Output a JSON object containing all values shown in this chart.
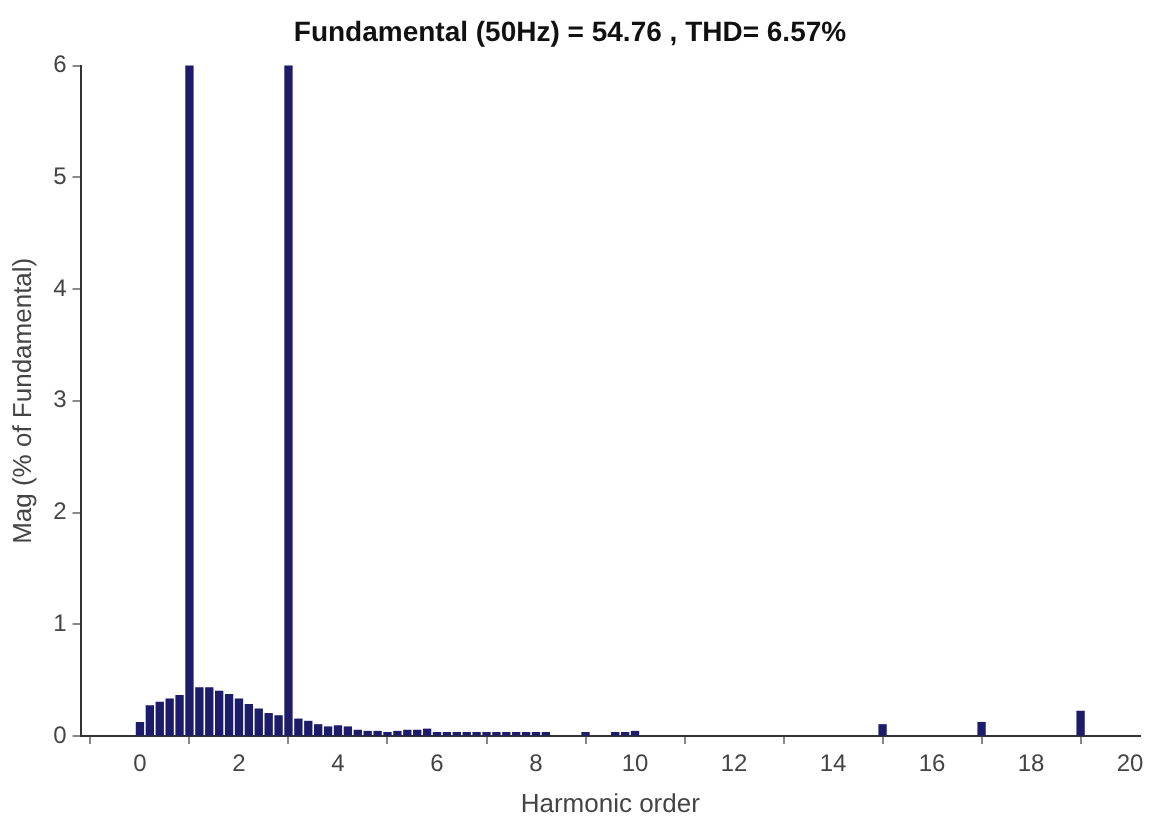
{
  "chart_data": {
    "type": "bar",
    "title": "Fundamental (50Hz) = 54.76 , THD= 6.57%",
    "xlabel": "Harmonic order",
    "ylabel": "Mag (% of Fundamental)",
    "x": [
      0,
      0.2,
      0.4,
      0.6,
      0.8,
      1,
      1.2,
      1.4,
      1.6,
      1.8,
      2,
      2.2,
      2.4,
      2.6,
      2.8,
      3,
      3.2,
      3.4,
      3.6,
      3.8,
      4,
      4.2,
      4.4,
      4.6,
      4.8,
      5,
      5.2,
      5.4,
      5.6,
      5.8,
      6,
      6.2,
      6.4,
      6.6,
      6.8,
      7,
      7.2,
      7.4,
      7.6,
      7.8,
      8,
      8.2,
      8.4,
      8.6,
      8.8,
      9,
      9.2,
      9.4,
      9.6,
      9.8,
      10,
      15,
      17,
      19
    ],
    "values": [
      0.12,
      0.27,
      0.3,
      0.33,
      0.36,
      6,
      0.43,
      0.43,
      0.4,
      0.37,
      0.33,
      0.28,
      0.24,
      0.2,
      0.18,
      6,
      0.15,
      0.13,
      0.1,
      0.08,
      0.09,
      0.08,
      0.05,
      0.04,
      0.04,
      0.03,
      0.04,
      0.05,
      0.05,
      0.06,
      0.03,
      0.03,
      0.03,
      0.03,
      0.03,
      0.03,
      0.03,
      0.03,
      0.03,
      0.03,
      0.03,
      0.03,
      null,
      null,
      null,
      0.03,
      null,
      null,
      0.03,
      0.03,
      0.04,
      0.1,
      0.12,
      0.22
    ],
    "color": "#1c1c6b",
    "xlim": [
      -1.2,
      20.2
    ],
    "xticks": [
      0,
      2,
      4,
      6,
      8,
      10,
      12,
      14,
      16,
      18,
      20
    ],
    "ylim": [
      0,
      6
    ],
    "yticks": [
      0,
      1,
      2,
      3,
      4,
      5,
      6
    ],
    "grid": false,
    "legend": false
  }
}
